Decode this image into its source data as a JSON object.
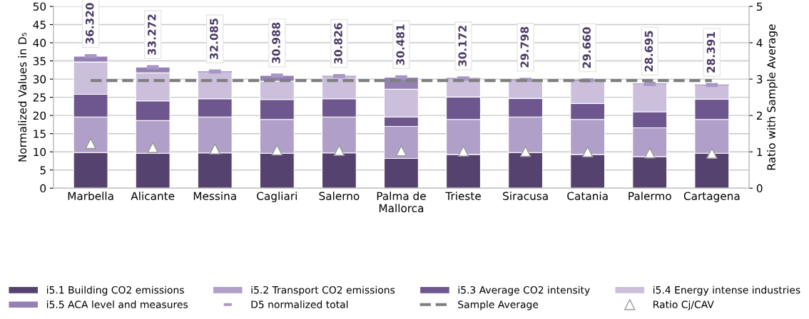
{
  "chart_data": {
    "type": "bar",
    "stacked": true,
    "ylabel": "Normalized Values in D₅",
    "y2label": "Ratio with Sample Average",
    "categories": [
      "Marbella",
      "Alicante",
      "Messina",
      "Cagliari",
      "Salerno",
      "Palma de Mallorca",
      "Trieste",
      "Siracusa",
      "Catania",
      "Palermo",
      "Cartagena"
    ],
    "series": [
      {
        "name": "i5.1 Building CO2 emissions",
        "color": "#56426f",
        "values": [
          9.8,
          9.6,
          9.7,
          9.6,
          9.7,
          8.2,
          9.3,
          9.8,
          9.3,
          8.7,
          9.6
        ]
      },
      {
        "name": "i5.2 Transport CO2 emissions",
        "color": "#b09fc8",
        "values": [
          9.8,
          9.0,
          9.9,
          9.3,
          9.9,
          8.8,
          9.6,
          9.8,
          9.6,
          7.9,
          9.3
        ]
      },
      {
        "name": "i5.3 Average CO2 intensity",
        "color": "#6e568e",
        "values": [
          6.2,
          5.4,
          5.0,
          5.5,
          5.0,
          2.6,
          6.2,
          5.1,
          4.4,
          4.4,
          5.6
        ]
      },
      {
        "name": "i5.4 Energy intense industries",
        "color": "#cbbfdc",
        "values": [
          8.9,
          7.7,
          7.4,
          5.0,
          6.2,
          7.6,
          5.1,
          5.1,
          6.4,
          7.7,
          3.9
        ]
      },
      {
        "name": "i5.5 ACA level and measures",
        "color": "#9580b4",
        "values": [
          1.6,
          1.6,
          0,
          1.6,
          0,
          3.3,
          0,
          0,
          0,
          0,
          0
        ]
      },
      {
        "name": "D5 normalized total",
        "type": "scatter",
        "marker": "square",
        "color": "#a896c4",
        "values": [
          36.32,
          33.272,
          32.085,
          30.988,
          30.826,
          30.481,
          30.172,
          29.798,
          29.66,
          28.695,
          28.391
        ],
        "value_labels": [
          "36.320",
          "33.272",
          "32.085",
          "30.988",
          "30.826",
          "30.481",
          "30.172",
          "29.798",
          "29.660",
          "28.695",
          "28.391"
        ]
      },
      {
        "name": "Sample Average",
        "type": "line",
        "line_style": "dashed",
        "color": "#7f7f7f",
        "values": [
          29.6,
          29.6,
          29.6,
          29.6,
          29.6,
          29.6,
          29.6,
          29.6,
          29.6,
          29.6,
          29.6
        ]
      },
      {
        "name": "Ratio Cj/CAV",
        "type": "scatter",
        "marker": "triangle",
        "axis": "y2",
        "color": "#ffffff",
        "values": [
          1.23,
          1.12,
          1.08,
          1.05,
          1.04,
          1.03,
          1.02,
          1.01,
          1.0,
          0.97,
          0.96
        ]
      }
    ],
    "ylim": [
      0,
      50
    ],
    "yticks": [
      0,
      5,
      10,
      15,
      20,
      25,
      30,
      35,
      40,
      45,
      50
    ],
    "y2lim": [
      0,
      5
    ],
    "y2ticks": [
      0,
      1,
      2,
      3,
      4,
      5
    ],
    "grid": "y",
    "legend": "bottom"
  }
}
